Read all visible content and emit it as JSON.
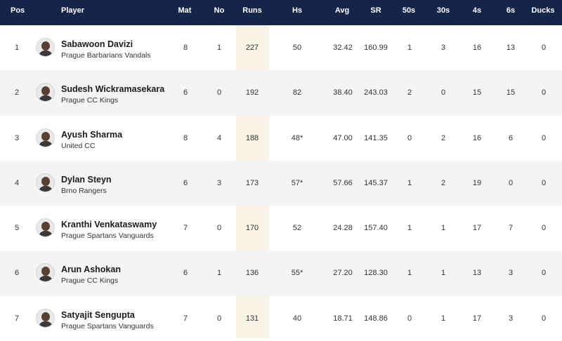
{
  "headers": {
    "pos": "Pos",
    "player": "Player",
    "mat": "Mat",
    "no": "No",
    "runs": "Runs",
    "hs": "Hs",
    "avg": "Avg",
    "sr": "SR",
    "fifties": "50s",
    "thirties": "30s",
    "fours": "4s",
    "sixes": "6s",
    "ducks": "Ducks"
  },
  "rows": [
    {
      "pos": "1",
      "name": "Sabawoon Davizi",
      "team": "Prague Barbarians Vandals",
      "mat": "8",
      "no": "1",
      "runs": "227",
      "hs": "50",
      "avg": "32.42",
      "sr": "160.99",
      "fifties": "1",
      "thirties": "3",
      "fours": "16",
      "sixes": "13",
      "ducks": "0"
    },
    {
      "pos": "2",
      "name": "Sudesh Wickramasekara",
      "team": "Prague CC Kings",
      "mat": "6",
      "no": "0",
      "runs": "192",
      "hs": "82",
      "avg": "38.40",
      "sr": "243.03",
      "fifties": "2",
      "thirties": "0",
      "fours": "15",
      "sixes": "15",
      "ducks": "0"
    },
    {
      "pos": "3",
      "name": "Ayush Sharma",
      "team": "United CC",
      "mat": "8",
      "no": "4",
      "runs": "188",
      "hs": "48*",
      "avg": "47.00",
      "sr": "141.35",
      "fifties": "0",
      "thirties": "2",
      "fours": "16",
      "sixes": "6",
      "ducks": "0"
    },
    {
      "pos": "4",
      "name": "Dylan Steyn",
      "team": "Brno Rangers",
      "mat": "6",
      "no": "3",
      "runs": "173",
      "hs": "57*",
      "avg": "57.66",
      "sr": "145.37",
      "fifties": "1",
      "thirties": "2",
      "fours": "19",
      "sixes": "0",
      "ducks": "0"
    },
    {
      "pos": "5",
      "name": "Kranthi Venkataswamy",
      "team": "Prague Spartans Vanguards",
      "mat": "7",
      "no": "0",
      "runs": "170",
      "hs": "52",
      "avg": "24.28",
      "sr": "157.40",
      "fifties": "1",
      "thirties": "1",
      "fours": "17",
      "sixes": "7",
      "ducks": "0"
    },
    {
      "pos": "6",
      "name": "Arun Ashokan",
      "team": "Prague CC Kings",
      "mat": "6",
      "no": "1",
      "runs": "136",
      "hs": "55*",
      "avg": "27.20",
      "sr": "128.30",
      "fifties": "1",
      "thirties": "1",
      "fours": "13",
      "sixes": "3",
      "ducks": "0"
    },
    {
      "pos": "7",
      "name": "Satyajit Sengupta",
      "team": "Prague Spartans Vanguards",
      "mat": "7",
      "no": "0",
      "runs": "131",
      "hs": "40",
      "avg": "18.71",
      "sr": "148.86",
      "fifties": "0",
      "thirties": "1",
      "fours": "17",
      "sixes": "3",
      "ducks": "0"
    }
  ],
  "colors": {
    "header_bg": "#15254a",
    "header_text": "#ffffff",
    "runs_highlight": "#f8f3e6",
    "row_alt": "#f4f4f4"
  }
}
